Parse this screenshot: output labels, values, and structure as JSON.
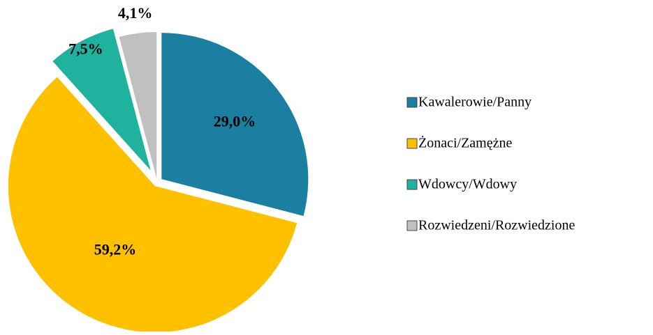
{
  "chart_data": {
    "type": "pie",
    "categories": [
      "Kawalerowie/Panny",
      "Żonaci/Zamężne",
      "Wdowcy/Wdowy",
      "Rozwiedzeni/Rozwiedzione"
    ],
    "values": [
      29.0,
      59.2,
      7.5,
      4.1
    ],
    "value_labels": [
      "29,0%",
      "59,2%",
      "7,5%",
      "4,1%"
    ],
    "colors": [
      "#1a7fa0",
      "#ffc000",
      "#1fb29f",
      "#c0c0c0"
    ],
    "legend": "right"
  }
}
